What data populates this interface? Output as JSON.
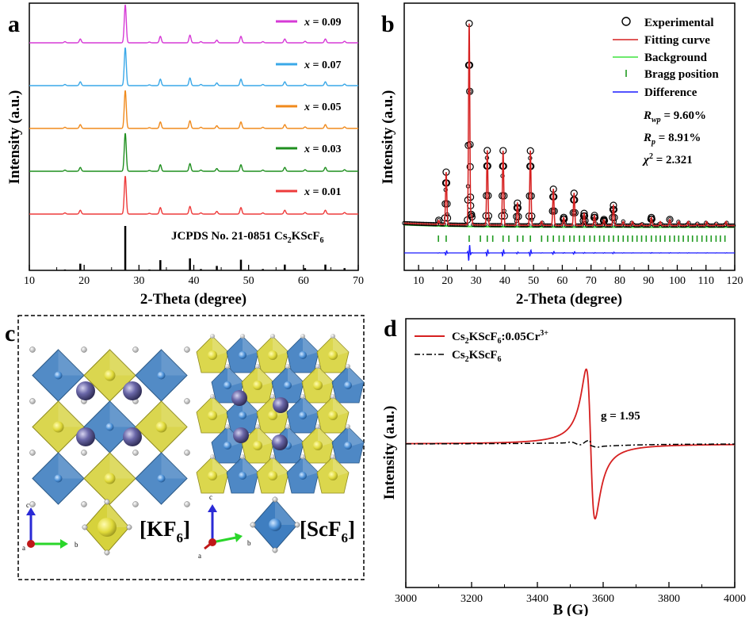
{
  "panel_labels": {
    "a": "a",
    "b": "b",
    "c": "c",
    "d": "d"
  },
  "colors": {
    "x009": "#d63ad6",
    "x007": "#3aa8e8",
    "x005": "#f08a1c",
    "x003": "#1f8f1f",
    "x001": "#ee3b3b",
    "jcpds": "#000000",
    "fit": "#d62020",
    "background": "#3ee33e",
    "bragg": "#1f9a1f",
    "difference": "#1a1aff",
    "epr_sample": "#d62020",
    "epr_host": "#000000",
    "oct_yellow": "#d6d23c",
    "oct_blue": "#3f7ec0",
    "atom_cs": "#4c4a86",
    "atom_f": "#d8d8d8"
  },
  "chart_data": [
    {
      "panel": "a",
      "type": "line",
      "xlabel": "2-Theta (degree)",
      "ylabel": "Intensity (a.u.)",
      "xlim": [
        10,
        70
      ],
      "xticks": [
        10,
        20,
        30,
        40,
        50,
        60,
        70
      ],
      "peak_positions": [
        16.5,
        19.3,
        27.5,
        31.9,
        33.9,
        39.3,
        41.3,
        44.2,
        48.6,
        52.6,
        56.6,
        60.3,
        64.0,
        67.5
      ],
      "peak_heights": [
        0.03,
        0.1,
        1.0,
        0.02,
        0.17,
        0.2,
        0.03,
        0.07,
        0.17,
        0.03,
        0.1,
        0.04,
        0.1,
        0.04
      ],
      "jcpds_heights": [
        0.02,
        0.15,
        1.0,
        0.02,
        0.23,
        0.27,
        0.03,
        0.1,
        0.24,
        0.03,
        0.13,
        0.05,
        0.13,
        0.05
      ],
      "series": [
        {
          "name": "x = 0.09",
          "label_x": "x",
          "label_val": " = 0.09",
          "color_key": "x009"
        },
        {
          "name": "x = 0.07",
          "label_x": "x",
          "label_val": " = 0.07",
          "color_key": "x007"
        },
        {
          "name": "x = 0.05",
          "label_x": "x",
          "label_val": " = 0.05",
          "color_key": "x005"
        },
        {
          "name": "x = 0.03",
          "label_x": "x",
          "label_val": " = 0.03",
          "color_key": "x003"
        },
        {
          "name": "x = 0.01",
          "label_x": "x",
          "label_val": " = 0.01",
          "color_key": "x001"
        }
      ],
      "reference": {
        "prefix": "JCPDS No. 21-0851 Cs",
        "sub1": "2",
        "mid": "KScF",
        "sub2": "6"
      }
    },
    {
      "panel": "b",
      "type": "scatter",
      "xlabel": "2-Theta (degree)",
      "ylabel": "Intensity (a.u.)",
      "xlim": [
        5,
        120
      ],
      "xticks": [
        10,
        20,
        30,
        40,
        50,
        60,
        70,
        80,
        90,
        100,
        110,
        120
      ],
      "peaks": [
        [
          17,
          0.02
        ],
        [
          19.6,
          0.26
        ],
        [
          27.6,
          1.0
        ],
        [
          28.4,
          0.05
        ],
        [
          33.9,
          0.37
        ],
        [
          39.4,
          0.37
        ],
        [
          44.4,
          0.11
        ],
        [
          48.9,
          0.37
        ],
        [
          52.8,
          0.02
        ],
        [
          56.9,
          0.18
        ],
        [
          60.5,
          0.04
        ],
        [
          64.1,
          0.16
        ],
        [
          67.6,
          0.06
        ],
        [
          71.2,
          0.05
        ],
        [
          74.5,
          0.03
        ],
        [
          77.8,
          0.1
        ],
        [
          81.2,
          0.02
        ],
        [
          84.4,
          0.02
        ],
        [
          87.6,
          0.01
        ],
        [
          91.0,
          0.04
        ],
        [
          94.1,
          0.02
        ],
        [
          97.4,
          0.03
        ],
        [
          100.5,
          0.02
        ],
        [
          103.8,
          0.02
        ],
        [
          106.9,
          0.01
        ],
        [
          110.2,
          0.02
        ],
        [
          113.5,
          0.01
        ],
        [
          117.0,
          0.02
        ]
      ],
      "bragg_positions": [
        16.9,
        19.6,
        27.6,
        31.5,
        33.9,
        35.8,
        39.4,
        41.4,
        44.4,
        46.3,
        48.9,
        52.8,
        54.9,
        56.9,
        58.9,
        60.5,
        62.6,
        64.1,
        66.0,
        67.6,
        69.6,
        71.2,
        73.0,
        74.5,
        76.2,
        77.8,
        79.5,
        81.2,
        82.8,
        84.4,
        86.0,
        87.6,
        89.2,
        91.0,
        92.6,
        94.1,
        95.7,
        97.4,
        99.0,
        100.5,
        102.1,
        103.8,
        105.3,
        106.9,
        108.6,
        110.2,
        111.8,
        113.5,
        115.0,
        116.6
      ],
      "legend": [
        "Experimental",
        "Fitting curve",
        "Background",
        "Bragg position",
        "Difference"
      ],
      "stats": {
        "rwp_sym": "R",
        "rwp_sub": "wp",
        "rwp_val": " = 9.60%",
        "rp_sym": "R",
        "rp_sub": "p",
        "rp_val": " = 8.91%",
        "chi_sym": "χ",
        "chi_sup": "2",
        "chi_val": " = 2.321"
      }
    },
    {
      "panel": "d",
      "type": "line",
      "xlabel": "B (G)",
      "ylabel": "Intensity (a.u.)",
      "xlim": [
        3000,
        4000
      ],
      "xticks": [
        3000,
        3200,
        3400,
        3600,
        3800,
        4000
      ],
      "center_field": 3562,
      "peak_field_max": 3545,
      "peak_field_min": 3578,
      "annotation": "g = 1.95",
      "legend": [
        {
          "prefix": "Cs",
          "sub1": "2",
          "mid": "KScF",
          "sub2": "6",
          "suffix": ":0.05Cr",
          "sup": "3+"
        },
        {
          "prefix": "Cs",
          "sub1": "2",
          "mid": "KScF",
          "sub2": "6",
          "suffix": "",
          "sup": ""
        }
      ]
    }
  ],
  "structure": {
    "kf6_label": {
      "text": "[KF",
      "sub": "6",
      "close": "]"
    },
    "scf6_label": {
      "text": "[ScF",
      "sub": "6",
      "close": "]"
    },
    "axes1": {
      "c": "c",
      "a": "a",
      "b": "b"
    },
    "axes2": {
      "c": "c",
      "a": "a",
      "b": "b"
    }
  }
}
